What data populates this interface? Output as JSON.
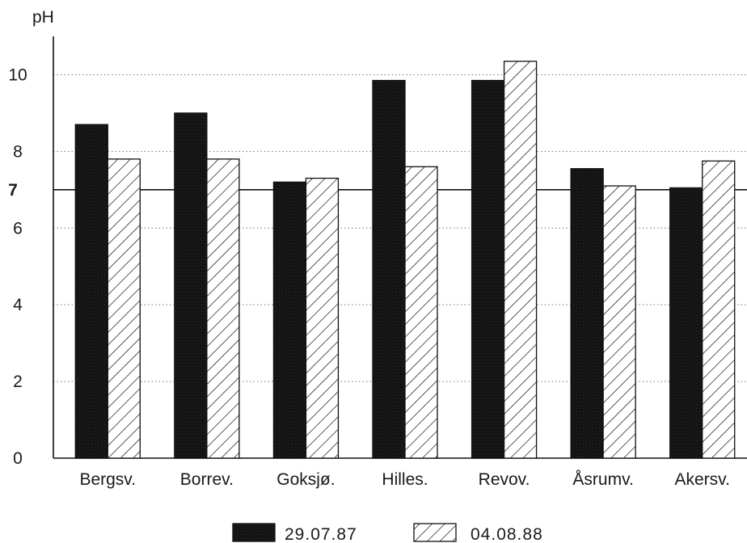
{
  "chart_data": {
    "type": "bar",
    "title": "",
    "xlabel": "",
    "ylabel": "pH",
    "ylim": [
      0,
      11
    ],
    "yticks": [
      0,
      2,
      4,
      6,
      8,
      10
    ],
    "reference_line": {
      "value": 7,
      "label": "7"
    },
    "grid": "horizontal dotted",
    "legend_position": "bottom-center",
    "categories": [
      "Bergsv.",
      "Borrev.",
      "Goksjø.",
      "Hilles.",
      "Revov.",
      "Åsrumv.",
      "Akersv."
    ],
    "series": [
      {
        "name": "29.07.87",
        "fill": "solid",
        "color": "#111111",
        "values": [
          8.7,
          9.0,
          7.2,
          9.85,
          9.85,
          7.55,
          7.05
        ]
      },
      {
        "name": "04.08.88",
        "fill": "hatched",
        "color": "#111111",
        "values": [
          7.8,
          7.8,
          7.3,
          7.6,
          10.35,
          7.1,
          7.75
        ]
      }
    ]
  }
}
